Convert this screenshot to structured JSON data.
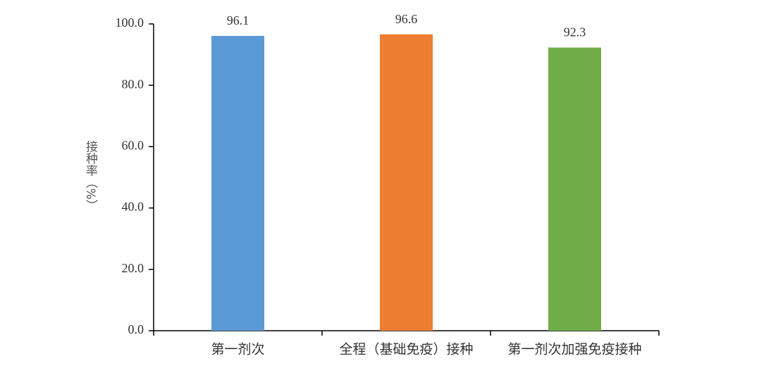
{
  "chart_data": {
    "type": "bar",
    "ylabel": "接种率（%）",
    "categories": [
      "第一剂次",
      "全程（基础免疫）接种",
      "第一剂次加强免疫接种"
    ],
    "values": [
      96.1,
      96.6,
      92.3
    ],
    "colors": [
      "#5b9bd5",
      "#ed7d31",
      "#70ad47"
    ],
    "ylim": [
      0,
      100
    ],
    "yticks": [
      {
        "value": 0,
        "label": "0.0"
      },
      {
        "value": 20,
        "label": "20.0"
      },
      {
        "value": 40,
        "label": "40.0"
      },
      {
        "value": 60,
        "label": "60.0"
      },
      {
        "value": 80,
        "label": "80.0"
      },
      {
        "value": 100,
        "label": "100.0"
      }
    ],
    "grid": false
  }
}
